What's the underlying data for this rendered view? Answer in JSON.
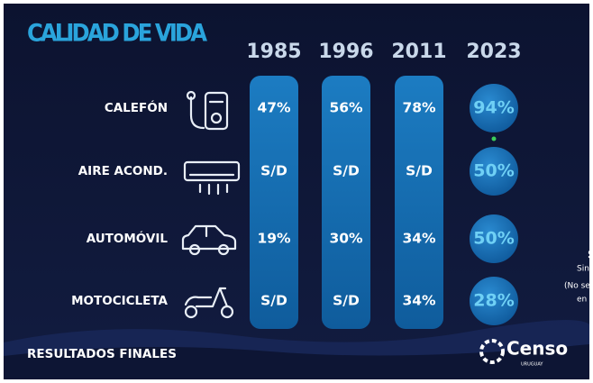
{
  "title": "CALIDAD DE VIDA",
  "table": {
    "years": [
      "1985",
      "1996",
      "2011",
      "2023"
    ],
    "rows": [
      {
        "label": "CALEFÓN",
        "values": [
          "47%",
          "56%",
          "78%",
          "94%"
        ]
      },
      {
        "label": "AIRE ACOND.",
        "values": [
          "S/D",
          "S/D",
          "S/D",
          "50%"
        ]
      },
      {
        "label": "AUTOMÓVIL",
        "values": [
          "19%",
          "30%",
          "34%",
          "50%"
        ]
      },
      {
        "label": "MOTOCICLETA",
        "values": [
          "S/D",
          "S/D",
          "34%",
          "28%"
        ]
      }
    ]
  },
  "side_note": [
    "S",
    "Sin",
    "(No se",
    "en los"
  ],
  "footer": {
    "text": "RESULTADOS FINALES",
    "logo": "Censo",
    "logo_sub": "URUGUAY"
  }
}
